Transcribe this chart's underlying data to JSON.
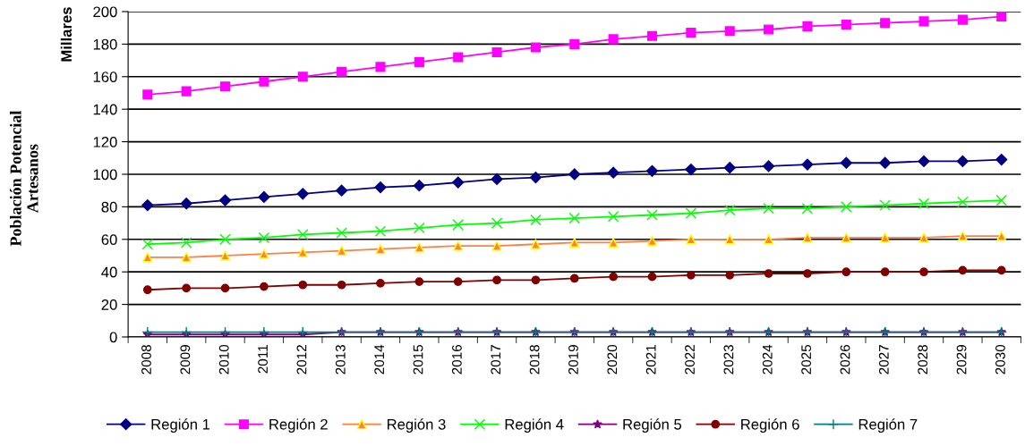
{
  "chart_data": {
    "type": "line",
    "ylabel": "Población Potencial\nArtesanos",
    "annotations": [
      "Millares"
    ],
    "categories": [
      "2008",
      "2009",
      "2010",
      "2011",
      "2012",
      "2013",
      "2014",
      "2015",
      "2016",
      "2017",
      "2018",
      "2019",
      "2020",
      "2021",
      "2022",
      "2023",
      "2024",
      "2025",
      "2026",
      "2027",
      "2028",
      "2029",
      "2030"
    ],
    "ylim": [
      0,
      200
    ],
    "yticks": [
      0,
      20,
      40,
      60,
      80,
      100,
      120,
      140,
      160,
      180,
      200
    ],
    "grid": "y",
    "legend": "bottom",
    "series": [
      {
        "name": "Región 1",
        "color": "#000080",
        "marker": "diamond",
        "values": [
          81,
          82,
          84,
          86,
          88,
          90,
          92,
          93,
          95,
          97,
          98,
          100,
          101,
          102,
          103,
          104,
          105,
          106,
          107,
          107,
          108,
          108,
          109
        ]
      },
      {
        "name": "Región 2",
        "color": "#ff00ff",
        "marker": "square",
        "values": [
          149,
          151,
          154,
          157,
          160,
          163,
          166,
          169,
          172,
          175,
          178,
          180,
          183,
          185,
          187,
          188,
          189,
          191,
          192,
          193,
          194,
          195,
          197
        ]
      },
      {
        "name": "Región 3",
        "color": "#ff8040",
        "marker": "triangle",
        "values": [
          49,
          49,
          50,
          51,
          52,
          53,
          54,
          55,
          56,
          56,
          57,
          58,
          58,
          59,
          60,
          60,
          60,
          61,
          61,
          61,
          61,
          62,
          62
        ]
      },
      {
        "name": "Región 4",
        "color": "#00ff00",
        "marker": "cross",
        "values": [
          57,
          58,
          60,
          61,
          63,
          64,
          65,
          67,
          69,
          70,
          72,
          73,
          74,
          75,
          76,
          78,
          79,
          79,
          80,
          81,
          82,
          83,
          84
        ]
      },
      {
        "name": "Región 5",
        "color": "#800080",
        "marker": "star",
        "values": [
          1.5,
          1.5,
          1.5,
          1.5,
          1.5,
          3,
          3,
          3,
          3,
          3,
          3,
          3,
          3,
          3,
          3,
          3,
          3,
          3,
          3,
          3,
          3,
          3,
          3
        ]
      },
      {
        "name": "Región 6",
        "color": "#800000",
        "marker": "circle",
        "values": [
          29,
          30,
          30,
          31,
          32,
          32,
          33,
          34,
          34,
          35,
          35,
          36,
          37,
          37,
          38,
          38,
          39,
          39,
          40,
          40,
          40,
          41,
          41
        ]
      },
      {
        "name": "Región 7",
        "color": "#008080",
        "marker": "plus",
        "values": [
          3,
          3,
          3,
          3,
          3,
          3,
          3,
          3,
          3,
          3,
          3,
          3,
          3,
          3,
          3,
          3,
          3,
          3,
          3,
          3,
          3,
          3,
          3
        ]
      }
    ]
  }
}
